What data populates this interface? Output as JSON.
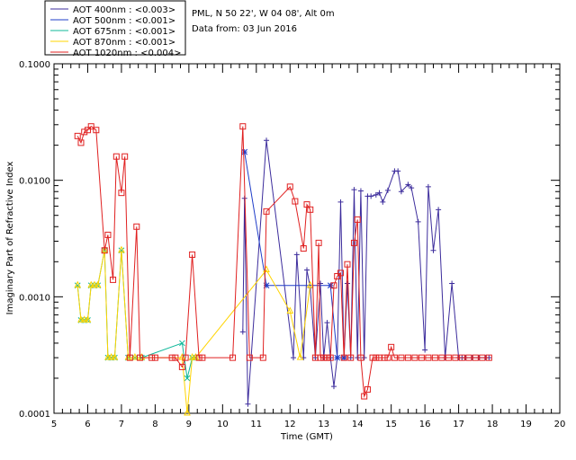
{
  "chart_data": {
    "type": "line",
    "xlabel": "Time (GMT)",
    "ylabel": "Imaginary Part of Refractive Index",
    "xlim": [
      5,
      20
    ],
    "ylim": [
      0.0001,
      0.1
    ],
    "yscale": "log",
    "x_ticks": [
      5,
      6,
      7,
      8,
      9,
      10,
      11,
      12,
      13,
      14,
      15,
      16,
      17,
      18,
      19,
      20
    ],
    "x_tick_labels": [
      "5",
      "6",
      "7",
      "8",
      "9",
      "10",
      "11",
      "12",
      "13",
      "14",
      "15",
      "16",
      "17",
      "18",
      "19",
      "20"
    ],
    "y_ticks": [
      0.0001,
      0.001,
      0.01,
      0.1
    ],
    "y_tick_labels": [
      "0.0001",
      "0.0010",
      "0.0100",
      "0.1000"
    ],
    "legend_position": "top-left",
    "info_lines": [
      "PML, N 50 22', W 04 08', Alt 0m",
      "Data from: 03 Jun 2016"
    ],
    "series": [
      {
        "name": "AOT  400nm : <0.003>",
        "color": "#3c2c9c",
        "marker": "plus",
        "x": [
          10.6,
          10.65,
          10.75,
          11.3,
          12.1,
          12.2,
          12.4,
          12.5,
          12.6,
          12.75,
          12.9,
          13.0,
          13.1,
          13.2,
          13.3,
          13.4,
          13.5,
          13.6,
          13.7,
          13.8,
          13.9,
          14.0,
          14.1,
          14.2,
          14.3,
          14.4,
          14.55,
          14.65,
          14.75,
          14.9,
          15.1,
          15.2,
          15.3,
          15.5,
          15.6,
          15.8,
          16.0,
          16.1,
          16.25,
          16.4,
          16.6,
          16.8,
          17.0,
          17.1,
          17.2,
          17.4,
          17.6,
          17.8,
          17.9
        ],
        "y": [
          0.0005,
          0.007,
          0.00012,
          0.022,
          0.0003,
          0.0023,
          0.0003,
          0.0017,
          0.0012,
          0.0003,
          0.0013,
          0.0003,
          0.0006,
          0.0003,
          0.00017,
          0.0003,
          0.0065,
          0.0003,
          0.0013,
          0.0003,
          0.0083,
          0.0003,
          0.0081,
          0.0003,
          0.0073,
          0.0073,
          0.0075,
          0.0078,
          0.0065,
          0.0082,
          0.012,
          0.012,
          0.008,
          0.0092,
          0.0086,
          0.0044,
          0.00035,
          0.0088,
          0.0025,
          0.0056,
          0.0003,
          0.0013,
          0.0003,
          0.0003,
          0.0003,
          0.0003,
          0.0003,
          0.0003,
          0.0003
        ]
      },
      {
        "name": "AOT  500nm : <0.001>",
        "color": "#1e3cc8",
        "marker": "asterisk",
        "x": [
          10.65,
          11.3,
          13.2,
          13.4,
          13.6
        ],
        "y": [
          0.0175,
          0.00125,
          0.00125,
          0.0003,
          0.0003
        ]
      },
      {
        "name": "AOT  675nm : <0.001>",
        "color": "#10b89a",
        "marker": "x",
        "x": [
          5.7,
          5.8,
          5.9,
          6.0,
          6.1,
          6.2,
          6.3,
          6.5,
          6.6,
          6.7,
          6.8,
          7.0,
          7.2,
          7.4,
          7.6,
          8.8,
          8.95,
          9.1,
          9.2
        ],
        "y": [
          0.00125,
          0.00063,
          0.00063,
          0.00063,
          0.00125,
          0.00125,
          0.00125,
          0.0025,
          0.0003,
          0.0003,
          0.0003,
          0.0025,
          0.0003,
          0.0003,
          0.0003,
          0.0004,
          0.0002,
          0.0003,
          0.0003
        ]
      },
      {
        "name": "AOT  870nm : <0.001>",
        "color": "#ffd400",
        "marker": "triangle",
        "x": [
          5.7,
          5.8,
          5.9,
          6.0,
          6.1,
          6.2,
          6.3,
          6.5,
          6.6,
          6.7,
          6.8,
          7.0,
          7.2,
          7.4,
          7.6,
          8.8,
          8.95,
          9.1,
          9.2,
          11.3,
          12.0,
          12.3,
          12.6
        ],
        "y": [
          0.00125,
          0.00063,
          0.00063,
          0.00063,
          0.00125,
          0.00125,
          0.00125,
          0.0025,
          0.0003,
          0.0003,
          0.0003,
          0.0025,
          0.0003,
          0.0003,
          0.0003,
          0.0003,
          0.0001,
          0.0003,
          0.0003,
          0.0017,
          0.00075,
          0.0003,
          0.00125
        ]
      },
      {
        "name": "AOT 1020nm : <0.004>",
        "color": "#e02020",
        "marker": "square",
        "x": [
          5.7,
          5.8,
          5.9,
          6.0,
          6.1,
          6.25,
          6.5,
          6.6,
          6.75,
          6.85,
          7.0,
          7.1,
          7.25,
          7.45,
          7.55,
          7.9,
          8.0,
          8.5,
          8.6,
          8.8,
          8.9,
          9.1,
          9.3,
          9.4,
          10.3,
          10.6,
          10.8,
          11.2,
          11.3,
          12.0,
          12.15,
          12.4,
          12.5,
          12.6,
          12.75,
          12.85,
          12.9,
          13.0,
          13.1,
          13.2,
          13.3,
          13.4,
          13.5,
          13.6,
          13.7,
          13.8,
          13.9,
          14.0,
          14.1,
          14.2,
          14.3,
          14.45,
          14.55,
          14.65,
          14.8,
          14.9,
          15.0,
          15.1,
          15.3,
          15.5,
          15.7,
          15.9,
          16.1,
          16.3,
          16.5,
          16.7,
          16.9,
          17.1,
          17.3,
          17.5,
          17.7,
          17.9
        ],
        "y": [
          0.024,
          0.021,
          0.026,
          0.027,
          0.029,
          0.027,
          0.0025,
          0.0034,
          0.0014,
          0.016,
          0.0078,
          0.016,
          0.0003,
          0.004,
          0.0003,
          0.0003,
          0.0003,
          0.0003,
          0.0003,
          0.00025,
          0.0003,
          0.0023,
          0.0003,
          0.0003,
          0.0003,
          0.029,
          0.0003,
          0.0003,
          0.0054,
          0.0088,
          0.0066,
          0.0026,
          0.0062,
          0.0056,
          0.0003,
          0.0029,
          0.0003,
          0.0003,
          0.0003,
          0.0003,
          0.00125,
          0.0015,
          0.0016,
          0.0003,
          0.0019,
          0.0003,
          0.0029,
          0.0046,
          0.0003,
          0.00014,
          0.00016,
          0.0003,
          0.0003,
          0.0003,
          0.0003,
          0.0003,
          0.00037,
          0.0003,
          0.0003,
          0.0003,
          0.0003,
          0.0003,
          0.0003,
          0.0003,
          0.0003,
          0.0003,
          0.0003,
          0.0003,
          0.0003,
          0.0003,
          0.0003,
          0.0003
        ]
      }
    ]
  }
}
